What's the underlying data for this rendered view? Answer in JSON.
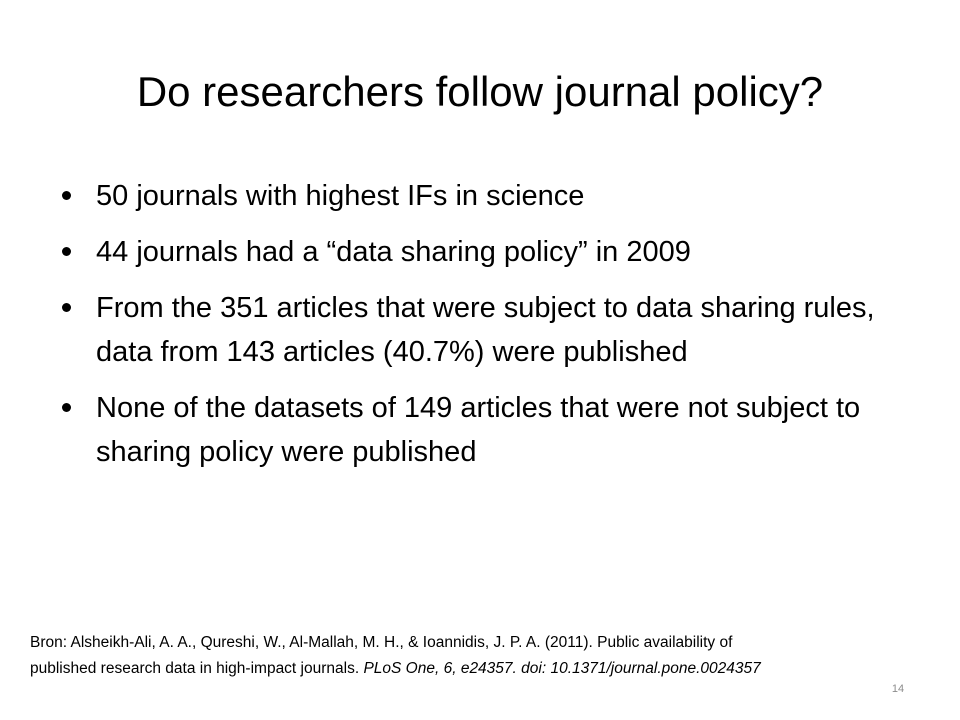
{
  "slide": {
    "title": "Do researchers follow journal policy?",
    "bullets": [
      {
        "text": "50 journals with highest IFs in science"
      },
      {
        "text": "44 journals had a “data sharing policy” in 2009"
      },
      {
        "text": "From the 351 articles that were subject to data sharing rules, data from 143 articles (40.7%) were published"
      },
      {
        "text": "None of the datasets of 149 articles that were not subject to sharing policy were published"
      }
    ],
    "citation": {
      "line1": "Bron: Alsheikh-Ali, A. A., Qureshi, W., Al-Mallah, M. H., & Ioannidis, J. P. A. (2011). Public availability of",
      "line2_plain": "published research  data in high-impact journals. ",
      "line2_italic": "PLoS One, 6, e24357. doi: 10.1371/journal.pone.0024357"
    },
    "page_number": "14"
  }
}
